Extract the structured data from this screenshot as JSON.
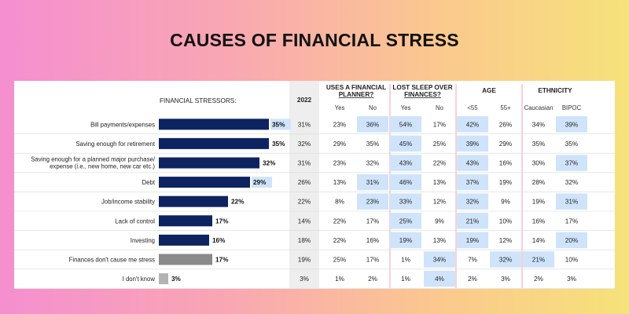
{
  "banner": {
    "title": "CAUSES OF FINANCIAL STRESS"
  },
  "colors": {
    "bar_navy": "#0d2461",
    "bar_grey_dark": "#8a8a8a",
    "bar_grey_light": "#b3b3b3",
    "highlight": "#cfe4fb",
    "year_col_bg": "#eeeeee",
    "pink_divider": "#f2b4bd",
    "grid": "#d9d9d9"
  },
  "chart_data": {
    "type": "table",
    "stub_header": "FINANCIAL STRESSORS:",
    "year_header": "2022",
    "groups": [
      {
        "title": [
          "USES A FINANCIAL",
          "PLANNER?"
        ],
        "subs": [
          "Yes",
          "No"
        ]
      },
      {
        "title": [
          "LOST SLEEP OVER",
          "FINANCES?"
        ],
        "subs": [
          "Yes",
          "No"
        ]
      },
      {
        "title": [
          "AGE"
        ],
        "subs": [
          "<55",
          "55+"
        ]
      },
      {
        "title": [
          "ETHNICITY"
        ],
        "subs": [
          "Caucasian",
          "BIPOC"
        ]
      }
    ],
    "rows": [
      {
        "label": [
          "Bill payments/expenses"
        ],
        "bar": 35,
        "bar_label": "35%",
        "bar_style": "navy",
        "bar_label_hl": true,
        "year": "31%",
        "cells": [
          "23%",
          "36%",
          "54%",
          "17%",
          "42%",
          "26%",
          "34%",
          "39%"
        ],
        "hl": [
          1,
          2,
          4,
          7
        ]
      },
      {
        "label": [
          "Saving enough for retirement"
        ],
        "bar": 35,
        "bar_label": "35%",
        "bar_style": "navy",
        "bar_label_hl": false,
        "year": "32%",
        "cells": [
          "29%",
          "35%",
          "45%",
          "25%",
          "39%",
          "29%",
          "35%",
          "35%"
        ],
        "hl": [
          2,
          4
        ]
      },
      {
        "label": [
          "Saving enough for a planned major purchase/",
          "expense (i.e., new home, new car etc.)"
        ],
        "bar": 32,
        "bar_label": "32%",
        "bar_style": "navy",
        "bar_label_hl": false,
        "year": "31%",
        "cells": [
          "23%",
          "32%",
          "43%",
          "22%",
          "43%",
          "16%",
          "30%",
          "37%"
        ],
        "hl": [
          2,
          4,
          7
        ]
      },
      {
        "label": [
          "Debt"
        ],
        "bar": 29,
        "bar_label": "29%",
        "bar_style": "navy",
        "bar_label_hl": true,
        "year": "26%",
        "cells": [
          "13%",
          "31%",
          "46%",
          "13%",
          "37%",
          "19%",
          "28%",
          "32%"
        ],
        "hl": [
          1,
          2,
          4
        ]
      },
      {
        "label": [
          "Job/income stability"
        ],
        "bar": 22,
        "bar_label": "22%",
        "bar_style": "navy",
        "bar_label_hl": false,
        "year": "22%",
        "cells": [
          "8%",
          "23%",
          "33%",
          "12%",
          "32%",
          "9%",
          "19%",
          "31%"
        ],
        "hl": [
          1,
          2,
          4,
          7
        ]
      },
      {
        "label": [
          "Lack of control"
        ],
        "bar": 17,
        "bar_label": "17%",
        "bar_style": "navy",
        "bar_label_hl": false,
        "year": "14%",
        "cells": [
          "22%",
          "17%",
          "25%",
          "9%",
          "21%",
          "10%",
          "16%",
          "17%"
        ],
        "hl": [
          2,
          4
        ]
      },
      {
        "label": [
          "Investing"
        ],
        "bar": 16,
        "bar_label": "16%",
        "bar_style": "navy",
        "bar_label_hl": false,
        "year": "18%",
        "cells": [
          "22%",
          "16%",
          "19%",
          "13%",
          "19%",
          "12%",
          "14%",
          "20%"
        ],
        "hl": [
          2,
          4,
          7
        ]
      },
      {
        "label": [
          "Finances don't cause me stress"
        ],
        "bar": 17,
        "bar_label": "17%",
        "bar_style": "grey_dark",
        "bar_label_hl": false,
        "year": "19%",
        "cells": [
          "25%",
          "17%",
          "1%",
          "34%",
          "7%",
          "32%",
          "21%",
          "10%"
        ],
        "hl": [
          3,
          5,
          6
        ]
      },
      {
        "label": [
          "I don't know"
        ],
        "bar": 3,
        "bar_label": "3%",
        "bar_style": "grey_light",
        "bar_label_hl": false,
        "year": "3%",
        "cells": [
          "1%",
          "2%",
          "1%",
          "4%",
          "2%",
          "3%",
          "2%",
          "3%"
        ],
        "hl": [
          3
        ]
      }
    ]
  }
}
